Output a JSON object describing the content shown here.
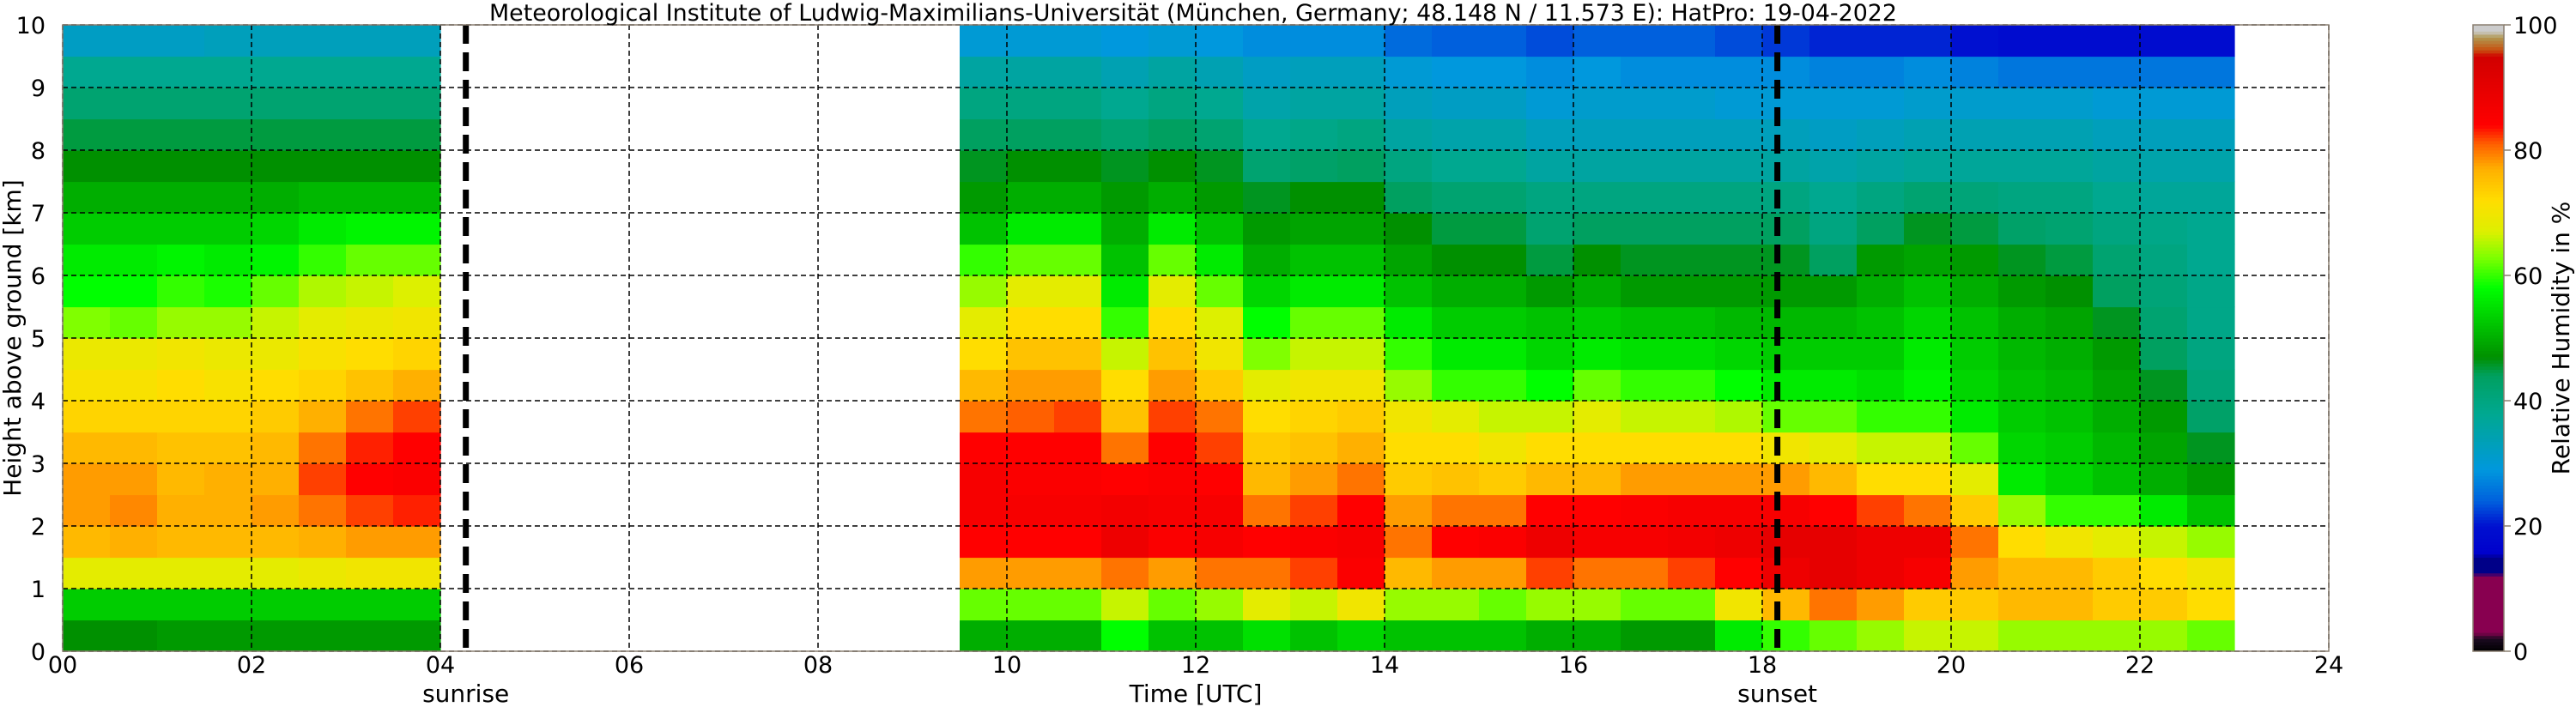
{
  "chart_data": {
    "type": "heatmap",
    "title": "Meteorological Institute of Ludwig-Maximilians-Universität (München, Germany; 48.148 N / 11.573 E):    HatPro: 19-04-2022",
    "xlabel": "Time [UTC]",
    "ylabel": "Height above ground [km]",
    "colorbar_label": "Relative Humidity in %",
    "xlim": [
      0,
      24
    ],
    "ylim": [
      0,
      10
    ],
    "x_ticks": [
      "00",
      "02",
      "04",
      "06",
      "08",
      "10",
      "12",
      "14",
      "16",
      "18",
      "20",
      "22",
      "24"
    ],
    "y_ticks": [
      "0",
      "1",
      "2",
      "3",
      "4",
      "5",
      "6",
      "7",
      "8",
      "9",
      "10"
    ],
    "colorbar_range": [
      0,
      100
    ],
    "colorbar_ticks": [
      "0",
      "20",
      "40",
      "60",
      "80",
      "100"
    ],
    "grid": true,
    "grid_style": "dashed",
    "markers": [
      {
        "label": "sunrise",
        "time": 4.27
      },
      {
        "label": "sunset",
        "time": 18.16
      }
    ],
    "time_step_hours": 0.5,
    "height_levels_km": [
      0.25,
      0.75,
      1.25,
      1.75,
      2.25,
      2.75,
      3.25,
      3.75,
      4.25,
      4.75,
      5.25,
      5.75,
      6.25,
      6.75,
      7.25,
      7.75,
      8.25,
      8.75,
      9.25,
      9.75
    ],
    "columns": [
      {
        "time": 0.0,
        "rh": [
          47,
          53,
          68,
          76,
          78,
          78,
          76,
          73,
          71,
          69,
          63,
          58,
          56,
          53,
          50,
          47,
          45,
          42,
          38,
          32
        ]
      },
      {
        "time": 0.5,
        "rh": [
          47,
          53,
          68,
          77,
          79,
          78,
          76,
          73,
          71,
          69,
          62,
          58,
          56,
          53,
          50,
          47,
          45,
          42,
          38,
          32
        ]
      },
      {
        "time": 1.0,
        "rh": [
          48,
          53,
          68,
          76,
          77,
          76,
          75,
          73,
          72,
          70,
          64,
          60,
          57,
          53,
          50,
          47,
          45,
          42,
          38,
          32
        ]
      },
      {
        "time": 1.5,
        "rh": [
          48,
          53,
          68,
          76,
          77,
          77,
          75,
          73,
          71,
          69,
          64,
          59,
          56,
          53,
          50,
          47,
          45,
          42,
          38,
          33
        ]
      },
      {
        "time": 2.0,
        "rh": [
          48,
          53,
          68,
          76,
          78,
          77,
          76,
          74,
          72,
          69,
          66,
          62,
          57,
          54,
          50,
          47,
          45,
          42,
          38,
          33
        ]
      },
      {
        "time": 2.5,
        "rh": [
          48,
          53,
          69,
          77,
          80,
          82,
          80,
          77,
          73,
          71,
          68,
          65,
          60,
          56,
          51,
          47,
          45,
          42,
          38,
          33
        ]
      },
      {
        "time": 3.0,
        "rh": [
          48,
          53,
          70,
          78,
          82,
          84,
          83,
          80,
          75,
          72,
          69,
          66,
          62,
          57,
          51,
          47,
          45,
          42,
          38,
          33
        ]
      },
      {
        "time": 3.5,
        "rh": [
          48,
          53,
          70,
          78,
          83,
          85,
          84,
          82,
          77,
          73,
          70,
          67,
          62,
          57,
          51,
          47,
          45,
          42,
          38,
          33
        ]
      },
      {
        "time": 9.5,
        "rh": [
          50,
          62,
          78,
          84,
          86,
          86,
          84,
          80,
          76,
          72,
          68,
          64,
          60,
          52,
          48,
          46,
          44,
          40,
          36,
          30
        ]
      },
      {
        "time": 10.0,
        "rh": [
          50,
          62,
          78,
          84,
          86,
          85,
          84,
          81,
          78,
          75,
          72,
          68,
          62,
          56,
          50,
          47,
          44,
          40,
          36,
          30
        ]
      },
      {
        "time": 10.5,
        "rh": [
          50,
          62,
          78,
          84,
          86,
          85,
          84,
          82,
          78,
          75,
          72,
          68,
          62,
          56,
          50,
          47,
          44,
          40,
          36,
          30
        ]
      },
      {
        "time": 11.0,
        "rh": [
          58,
          66,
          80,
          88,
          87,
          84,
          80,
          75,
          72,
          66,
          60,
          56,
          52,
          50,
          48,
          46,
          42,
          38,
          34,
          29
        ]
      },
      {
        "time": 11.5,
        "rh": [
          52,
          62,
          78,
          85,
          86,
          85,
          84,
          82,
          78,
          75,
          72,
          68,
          62,
          56,
          50,
          47,
          44,
          40,
          36,
          30
        ]
      },
      {
        "time": 12.0,
        "rh": [
          52,
          64,
          80,
          86,
          86,
          84,
          82,
          80,
          74,
          70,
          67,
          62,
          56,
          52,
          48,
          46,
          42,
          38,
          34,
          29
        ]
      },
      {
        "time": 12.5,
        "rh": [
          55,
          68,
          80,
          84,
          80,
          76,
          74,
          72,
          68,
          63,
          58,
          54,
          50,
          48,
          46,
          42,
          38,
          35,
          32,
          28
        ]
      },
      {
        "time": 13.0,
        "rh": [
          52,
          66,
          82,
          85,
          82,
          78,
          75,
          73,
          70,
          66,
          62,
          56,
          52,
          49,
          47,
          43,
          39,
          36,
          33,
          28
        ]
      },
      {
        "time": 13.5,
        "rh": [
          54,
          70,
          85,
          86,
          84,
          80,
          77,
          74,
          70,
          66,
          62,
          56,
          52,
          49,
          47,
          44,
          40,
          36,
          33,
          28
        ]
      },
      {
        "time": 14.0,
        "rh": [
          52,
          64,
          76,
          80,
          78,
          74,
          72,
          70,
          64,
          60,
          56,
          52,
          49,
          47,
          44,
          40,
          36,
          33,
          30,
          25
        ]
      },
      {
        "time": 14.5,
        "rh": [
          52,
          64,
          78,
          84,
          80,
          75,
          72,
          68,
          60,
          56,
          53,
          50,
          47,
          45,
          42,
          38,
          35,
          32,
          29,
          24
        ]
      },
      {
        "time": 15.0,
        "rh": [
          52,
          62,
          78,
          85,
          80,
          74,
          70,
          66,
          60,
          56,
          53,
          50,
          47,
          45,
          42,
          38,
          35,
          32,
          29,
          24
        ]
      },
      {
        "time": 15.5,
        "rh": [
          50,
          64,
          82,
          88,
          84,
          76,
          72,
          66,
          58,
          54,
          52,
          48,
          45,
          42,
          40,
          36,
          33,
          30,
          28,
          23
        ]
      },
      {
        "time": 16.0,
        "rh": [
          50,
          64,
          80,
          86,
          84,
          76,
          72,
          68,
          62,
          56,
          53,
          50,
          47,
          44,
          40,
          36,
          33,
          31,
          29,
          24
        ]
      },
      {
        "time": 16.5,
        "rh": [
          48,
          62,
          80,
          86,
          85,
          78,
          72,
          66,
          60,
          55,
          52,
          48,
          46,
          44,
          40,
          36,
          33,
          31,
          28,
          24
        ]
      },
      {
        "time": 17.0,
        "rh": [
          48,
          62,
          82,
          87,
          86,
          78,
          72,
          66,
          60,
          55,
          52,
          48,
          46,
          44,
          40,
          36,
          33,
          31,
          28,
          24
        ]
      },
      {
        "time": 17.5,
        "rh": [
          56,
          70,
          84,
          88,
          86,
          78,
          72,
          65,
          58,
          54,
          51,
          48,
          46,
          44,
          40,
          36,
          33,
          30,
          28,
          23
        ]
      },
      {
        "time": 18.0,
        "rh": [
          60,
          76,
          88,
          90,
          86,
          78,
          70,
          62,
          56,
          53,
          51,
          48,
          46,
          44,
          40,
          36,
          33,
          30,
          28,
          22
        ]
      },
      {
        "time": 18.5,
        "rh": [
          62,
          80,
          90,
          90,
          84,
          76,
          68,
          62,
          56,
          53,
          51,
          48,
          44,
          40,
          38,
          35,
          32,
          30,
          27,
          21
        ]
      },
      {
        "time": 19.0,
        "rh": [
          64,
          78,
          88,
          88,
          82,
          72,
          66,
          60,
          55,
          53,
          52,
          50,
          48,
          44,
          40,
          36,
          33,
          30,
          27,
          21
        ]
      },
      {
        "time": 19.5,
        "rh": [
          66,
          74,
          86,
          88,
          80,
          72,
          66,
          60,
          57,
          56,
          54,
          52,
          49,
          46,
          42,
          37,
          34,
          31,
          28,
          21
        ]
      },
      {
        "time": 20.0,
        "rh": [
          66,
          74,
          78,
          80,
          74,
          68,
          62,
          56,
          54,
          53,
          52,
          50,
          48,
          45,
          41,
          37,
          34,
          31,
          27,
          20
        ]
      },
      {
        "time": 20.5,
        "rh": [
          64,
          76,
          76,
          72,
          64,
          56,
          54,
          53,
          52,
          51,
          50,
          48,
          46,
          43,
          40,
          37,
          34,
          31,
          26,
          19
        ]
      },
      {
        "time": 21.0,
        "rh": [
          64,
          76,
          76,
          70,
          60,
          54,
          53,
          52,
          51,
          50,
          49,
          47,
          45,
          42,
          40,
          37,
          34,
          31,
          26,
          19
        ]
      },
      {
        "time": 21.5,
        "rh": [
          64,
          74,
          74,
          68,
          60,
          52,
          51,
          50,
          49,
          48,
          46,
          44,
          42,
          40,
          38,
          36,
          33,
          30,
          26,
          19
        ]
      },
      {
        "time": 22.0,
        "rh": [
          64,
          74,
          72,
          66,
          56,
          50,
          49,
          48,
          46,
          44,
          42,
          41,
          40,
          39,
          37,
          35,
          33,
          30,
          26,
          19
        ]
      },
      {
        "time": 22.5,
        "rh": [
          62,
          72,
          70,
          64,
          52,
          48,
          46,
          43,
          41,
          40,
          39,
          39,
          38,
          38,
          37,
          35,
          33,
          30,
          26,
          19
        ]
      }
    ],
    "colormap": [
      [
        0,
        "#000000"
      ],
      [
        2,
        "#1a0a20"
      ],
      [
        3,
        "#880050"
      ],
      [
        12,
        "#880050"
      ],
      [
        12.5,
        "#000088"
      ],
      [
        15,
        "#000088"
      ],
      [
        15.5,
        "#0000cc"
      ],
      [
        20,
        "#0010d0"
      ],
      [
        24,
        "#0060dd"
      ],
      [
        29,
        "#0098dd"
      ],
      [
        38,
        "#00a890"
      ],
      [
        44,
        "#00a060"
      ],
      [
        47,
        "#009000"
      ],
      [
        53,
        "#00cc00"
      ],
      [
        58,
        "#00ff00"
      ],
      [
        63,
        "#80ff00"
      ],
      [
        67,
        "#ddf000"
      ],
      [
        72,
        "#ffdd00"
      ],
      [
        77,
        "#ffb000"
      ],
      [
        81,
        "#ff6000"
      ],
      [
        84,
        "#ff0000"
      ],
      [
        90,
        "#e60000"
      ],
      [
        95,
        "#d00000"
      ],
      [
        96,
        "#c85010"
      ],
      [
        98,
        "#b09850"
      ],
      [
        99,
        "#cccccc"
      ],
      [
        100,
        "#cccccc"
      ]
    ]
  }
}
